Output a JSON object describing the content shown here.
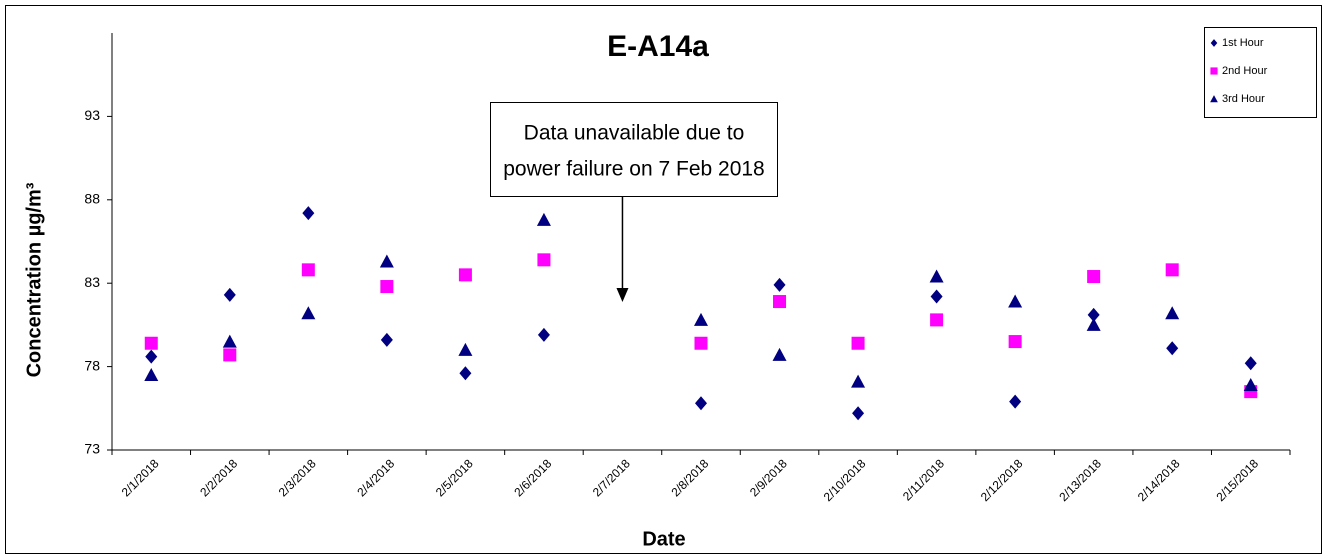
{
  "chart_data": {
    "type": "scatter",
    "title": "E-A14a",
    "xlabel": "Date",
    "ylabel": "Concentration  µg/m³",
    "annotation": [
      "Data unavailable due to",
      "power failure on 7 Feb 2018"
    ],
    "annotation_category": 6,
    "categories": [
      "2/1/2018",
      "2/2/2018",
      "2/3/2018",
      "2/4/2018",
      "2/5/2018",
      "2/6/2018",
      "2/7/2018",
      "2/8/2018",
      "2/9/2018",
      "2/10/2018",
      "2/11/2018",
      "2/12/2018",
      "2/13/2018",
      "2/14/2018",
      "2/15/2018"
    ],
    "series": [
      {
        "name": "1st Hour",
        "color": "#000080",
        "marker": "diamond",
        "values": [
          78.6,
          82.3,
          87.2,
          79.6,
          77.6,
          79.9,
          null,
          75.8,
          82.9,
          75.2,
          82.2,
          75.9,
          81.1,
          79.1,
          78.2
        ]
      },
      {
        "name": "2nd Hour",
        "color": "#ff00ff",
        "marker": "square",
        "values": [
          79.4,
          78.7,
          83.8,
          82.8,
          83.5,
          84.4,
          null,
          79.4,
          81.9,
          79.4,
          80.8,
          79.5,
          83.4,
          83.8,
          76.5
        ]
      },
      {
        "name": "3rd Hour",
        "color": "#000080",
        "marker": "triangle",
        "values": [
          77.5,
          79.5,
          81.2,
          84.3,
          79.0,
          86.8,
          null,
          80.8,
          78.7,
          77.1,
          83.4,
          81.9,
          80.5,
          81.2,
          76.9
        ]
      }
    ],
    "ylim": [
      73,
      98
    ],
    "yticks": [
      73,
      78,
      83,
      88,
      93
    ],
    "grid": false,
    "legend": "top-right"
  }
}
